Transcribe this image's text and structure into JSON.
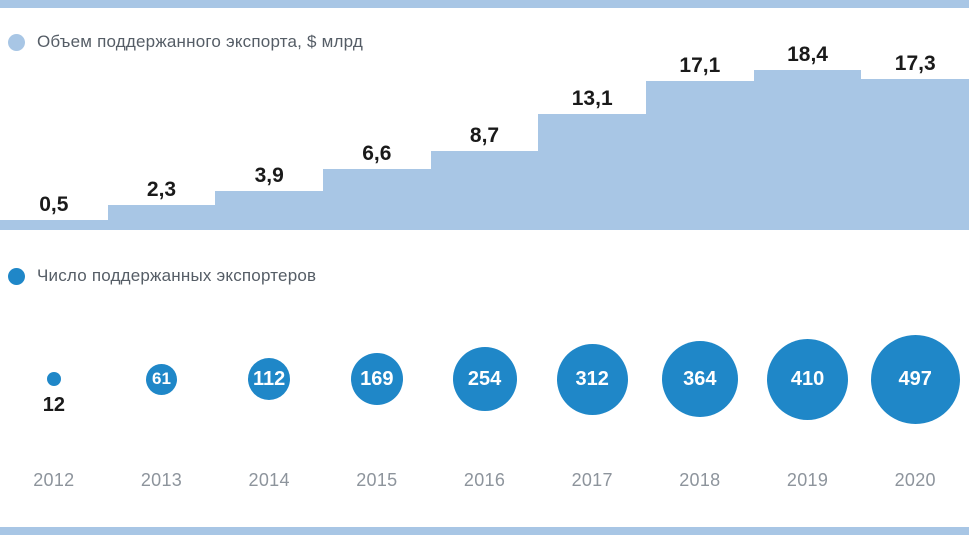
{
  "colors": {
    "light_blue": "#a8c6e5",
    "dark_blue": "#1f87c8",
    "label_dark": "#1a1a1a",
    "year_gray": "#8d949c",
    "legend_gray": "#555d66",
    "background": "#ffffff"
  },
  "legend": {
    "export_volume": {
      "label": "Объем поддержанного экспорта, $ млрд",
      "color": "#a8c6e5"
    },
    "exporters": {
      "label": "Число поддержанных экспортеров",
      "color": "#1f87c8"
    }
  },
  "chart_data": [
    {
      "type": "area",
      "style": "step",
      "title": "Объем поддержанного экспорта, $ млрд",
      "categories": [
        "2012",
        "2013",
        "2014",
        "2015",
        "2016",
        "2017",
        "2018",
        "2019",
        "2020"
      ],
      "values": [
        0.5,
        2.3,
        3.9,
        6.6,
        8.7,
        13.1,
        17.1,
        18.4,
        17.3
      ],
      "value_labels": [
        "0,5",
        "2,3",
        "3,9",
        "6,6",
        "8,7",
        "13,1",
        "17,1",
        "18,4",
        "17,3"
      ],
      "color": "#a8c6e5",
      "ylim": [
        0,
        18.4
      ],
      "grid": false,
      "legend_position": "top-left"
    },
    {
      "type": "scatter",
      "style": "bubble",
      "title": "Число поддержанных экспортеров",
      "categories": [
        "2012",
        "2013",
        "2014",
        "2015",
        "2016",
        "2017",
        "2018",
        "2019",
        "2020"
      ],
      "values": [
        12,
        61,
        112,
        169,
        254,
        312,
        364,
        410,
        497
      ],
      "color": "#1f87c8",
      "grid": false,
      "legend_position": "middle-left"
    }
  ]
}
